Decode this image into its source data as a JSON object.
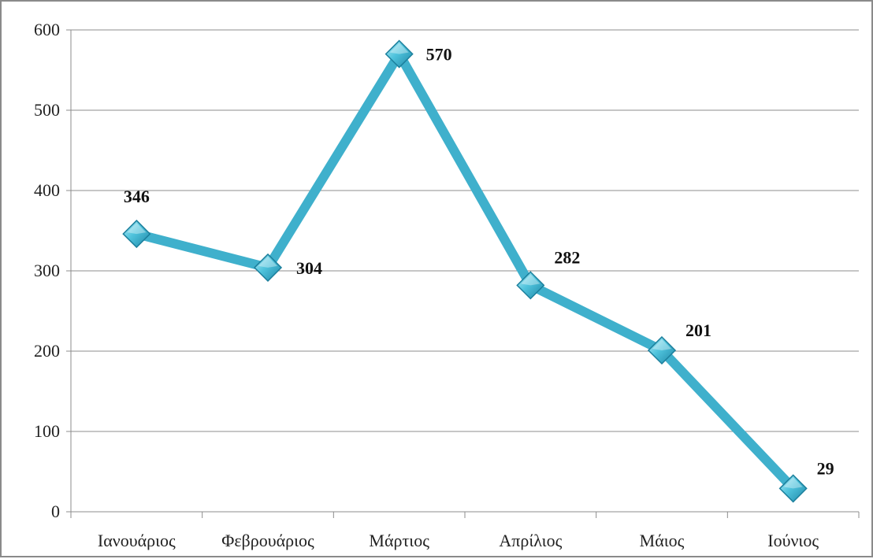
{
  "chart_data": {
    "type": "line",
    "title": "",
    "xlabel": "",
    "ylabel": "",
    "categories": [
      "Ιανουάριος",
      "Φεβρουάριος",
      "Μάρτιος",
      "Απρίλιος",
      "Μάιος",
      "Ιούνιος"
    ],
    "series": [
      {
        "values": [
          346,
          304,
          570,
          282,
          201,
          29
        ],
        "color": "#3fb0cc",
        "marker": "diamond"
      }
    ],
    "ylim": [
      0,
      600
    ],
    "yticks": [
      0,
      100,
      200,
      300,
      400,
      500,
      600
    ],
    "grid": true,
    "legend": "none",
    "data_labels": [
      "346",
      "304",
      "570",
      "282",
      "201",
      "29"
    ]
  }
}
